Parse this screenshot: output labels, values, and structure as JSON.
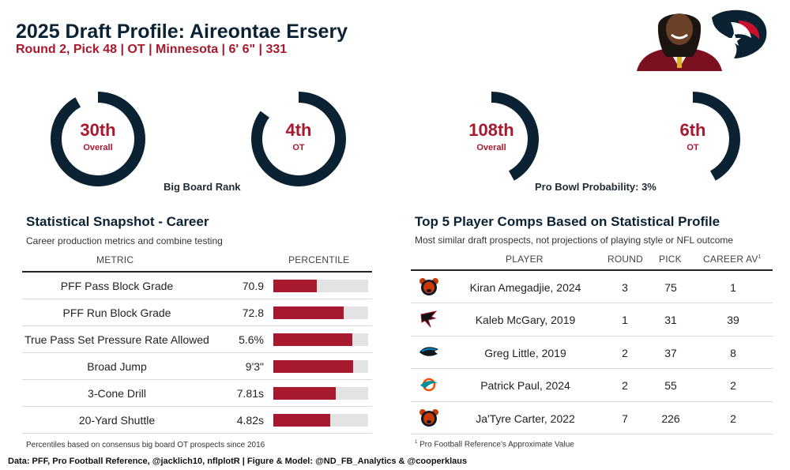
{
  "header": {
    "title": "2025 Draft Profile: Aireontae Ersery",
    "subtitle": "Round 2, Pick 48 | OT | Minnesota | 6' 6\" | 331"
  },
  "gauges": [
    {
      "value": "30th",
      "label": "Overall",
      "fill": 0.92
    },
    {
      "value": "4th",
      "label": "OT",
      "fill": 0.85
    },
    {
      "value": "108th",
      "label": "Overall",
      "fill": 0.42
    },
    {
      "value": "6th",
      "label": "OT",
      "fill": 0.42
    }
  ],
  "big_board_caption": "Big Board Rank",
  "pro_bowl_caption": "Pro Bowl Probability: 3%",
  "snapshot": {
    "title": "Statistical Snapshot - Career",
    "subtitle": "Career production metrics and combine testing",
    "col_metric": "METRIC",
    "col_percentile": "PERCENTILE",
    "rows": [
      {
        "metric": "PFF Pass Block Grade",
        "value": "70.9",
        "percentile": 0.46
      },
      {
        "metric": "PFF Run Block Grade",
        "value": "72.8",
        "percentile": 0.74
      },
      {
        "metric": "True Pass Set Pressure Rate Allowed",
        "value": "5.6%",
        "percentile": 0.83
      },
      {
        "metric": "Broad Jump",
        "value": "9'3\"",
        "percentile": 0.84
      },
      {
        "metric": "3-Cone Drill",
        "value": "7.81s",
        "percentile": 0.66
      },
      {
        "metric": "20-Yard Shuttle",
        "value": "4.82s",
        "percentile": 0.6
      }
    ],
    "footnote": "Percentiles based on consensus big board OT prospects since 2016"
  },
  "comps": {
    "title": "Top 5 Player Comps Based on Statistical Profile",
    "subtitle": "Most similar draft prospects, not projections of playing style or NFL outcome",
    "col_player": "PLAYER",
    "col_round": "ROUND",
    "col_pick": "PICK",
    "col_av": "CAREER AV",
    "av_marker": "1",
    "rows": [
      {
        "team_icon": "bears-logo-icon",
        "player": "Kiran Amegadjie, 2024",
        "round": "3",
        "pick": "75",
        "av": "1"
      },
      {
        "team_icon": "falcons-logo-icon",
        "player": "Kaleb McGary, 2019",
        "round": "1",
        "pick": "31",
        "av": "39"
      },
      {
        "team_icon": "panthers-logo-icon",
        "player": "Greg Little, 2019",
        "round": "2",
        "pick": "37",
        "av": "8"
      },
      {
        "team_icon": "dolphins-logo-icon",
        "player": "Patrick Paul, 2024",
        "round": "2",
        "pick": "55",
        "av": "2"
      },
      {
        "team_icon": "bears-logo-icon",
        "player": "Ja'Tyre Carter, 2022",
        "round": "7",
        "pick": "226",
        "av": "2"
      }
    ],
    "footnote_marker": "1",
    "footnote": "Pro Football Reference's Approximate Value"
  },
  "credits": "Data: PFF, Pro Football Reference, @jacklich10, nflplotR | Figure & Model: @ND_FB_Analytics & @cooperklaus",
  "colors": {
    "accent": "#a6192e",
    "navy": "#0b2233",
    "track": "#e3e3e3"
  }
}
